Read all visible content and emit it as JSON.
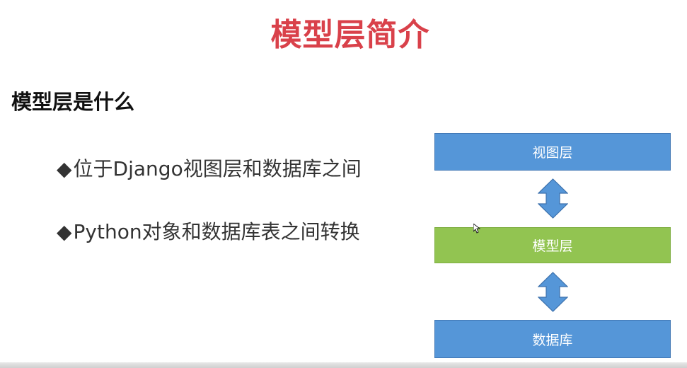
{
  "slide": {
    "title": "模型层简介",
    "subtitle": "模型层是什么",
    "bullets": [
      {
        "mark": "◆",
        "text": "位于Django视图层和数据库之间"
      },
      {
        "mark": "◆",
        "text": "Python对象和数据库表之间转换"
      }
    ]
  },
  "diagram": {
    "layers": [
      {
        "label": "视图层",
        "color": "#5596d8"
      },
      {
        "label": "模型层",
        "color": "#92c451"
      },
      {
        "label": "数据库",
        "color": "#5596d8"
      }
    ],
    "arrow_icon": "double-vertical-arrow-icon"
  },
  "colors": {
    "title": "#d9414a",
    "arrow_fill": "#5596d8",
    "arrow_stroke": "#3d72ad"
  }
}
